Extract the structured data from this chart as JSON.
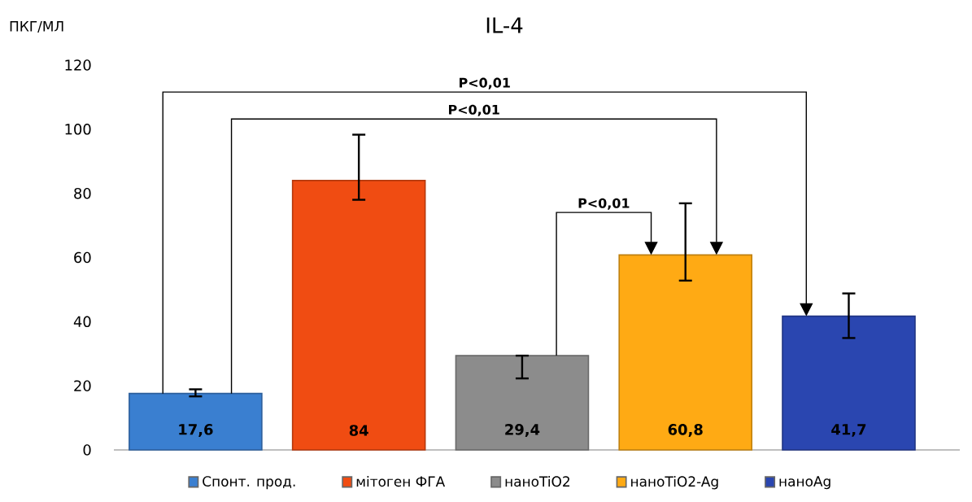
{
  "chart_data": {
    "type": "bar",
    "title": "IL-4",
    "ylabel": "ПКГ/МЛ",
    "categories": [
      null,
      null,
      null,
      null,
      null
    ],
    "series": [
      {
        "name": "Спонт. прод.",
        "color": "#3a7fd0",
        "values": [
          17.6,
          null,
          null,
          null,
          null
        ],
        "errors": [
          [
            16.7,
            18.9
          ],
          null,
          null,
          null,
          null
        ],
        "value_labels": [
          "17,6",
          null,
          null,
          null,
          null
        ]
      },
      {
        "name": "мітоген ФГА",
        "color": "#f04c12",
        "values": [
          null,
          84,
          null,
          null,
          null
        ],
        "errors": [
          null,
          [
            78.0,
            98.3
          ],
          null,
          null,
          null
        ],
        "value_labels": [
          null,
          "84",
          null,
          null,
          null
        ]
      },
      {
        "name": "наноTiO2",
        "color": "#8c8c8c",
        "values": [
          null,
          null,
          29.4,
          null,
          null
        ],
        "errors": [
          null,
          null,
          [
            22.3,
            29.4
          ],
          null,
          null
        ],
        "value_labels": [
          null,
          null,
          "29,4",
          null,
          null
        ]
      },
      {
        "name": "наноTiO2-Ag",
        "color": "#ffaa14",
        "values": [
          null,
          null,
          null,
          60.8,
          null
        ],
        "errors": [
          null,
          null,
          null,
          [
            52.8,
            76.9
          ],
          null
        ],
        "value_labels": [
          null,
          null,
          null,
          "60,8",
          null
        ]
      },
      {
        "name": "наноAg",
        "color": "#2a46b0",
        "values": [
          null,
          null,
          null,
          null,
          41.7
        ],
        "errors": [
          null,
          null,
          null,
          null,
          [
            34.9,
            48.8
          ]
        ],
        "value_labels": [
          null,
          null,
          null,
          null,
          "41,7"
        ]
      }
    ],
    "ylim": [
      0,
      120
    ],
    "yticks": [
      0,
      20,
      40,
      60,
      80,
      100,
      120
    ],
    "legend": "bottom",
    "annotations": [
      "P<0,01",
      "P<0,01",
      "P<0,01"
    ]
  }
}
